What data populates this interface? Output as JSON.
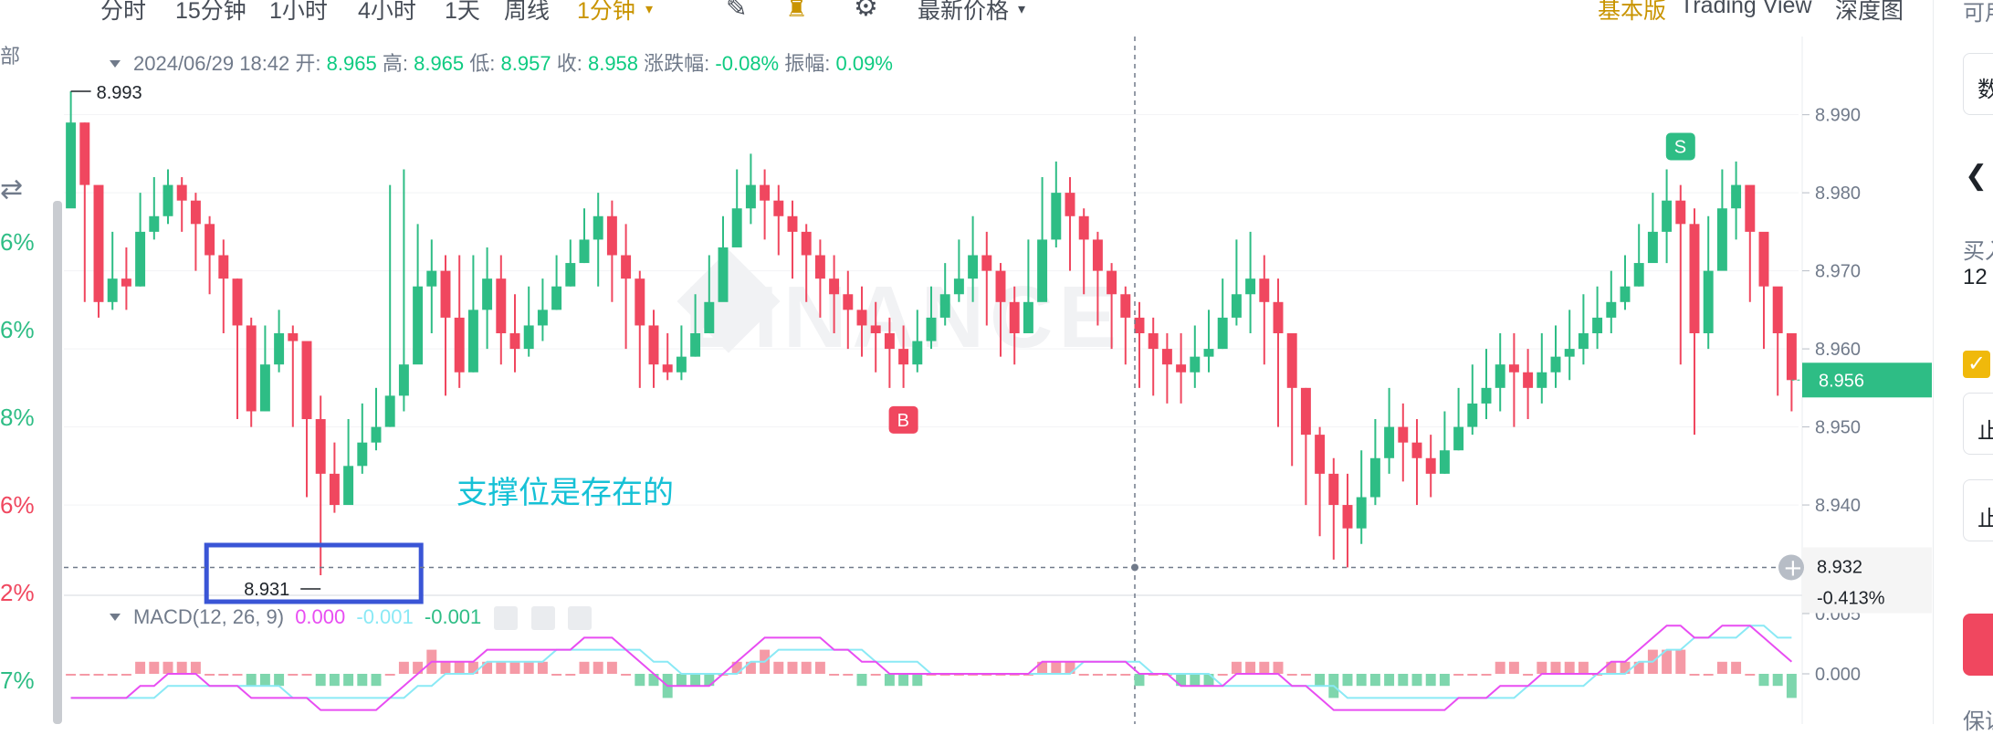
{
  "toolbar": {
    "intervals": [
      "分时",
      "15分钟",
      "1小时",
      "4小时",
      "1天",
      "周线"
    ],
    "active_interval": "1分钟",
    "price_type": "最新价格",
    "view_modes": [
      "基本版",
      "Trading View",
      "深度图"
    ],
    "active_view": "基本版"
  },
  "left_panel": {
    "dropdown_label": "部",
    "percentages": [
      "6%",
      "6%",
      "8%",
      "6%",
      "2%",
      "7%"
    ]
  },
  "right_panel": {
    "texts": [
      "可用",
      "数",
      "买入",
      "12",
      "止",
      "止",
      "保证"
    ]
  },
  "ohlc": {
    "datetime": "2024/06/29 18:42",
    "open_label": "开:",
    "open": "8.965",
    "high_label": "高:",
    "high": "8.965",
    "low_label": "低:",
    "low": "8.957",
    "close_label": "收:",
    "close": "8.958",
    "change_label": "涨跌幅:",
    "change": "-0.08%",
    "amp_label": "振幅:",
    "amp": "0.09%"
  },
  "macd": {
    "label": "MACD(12, 26, 9)",
    "dif": "0.000",
    "dea": "-0.001",
    "hist": "-0.001",
    "dif_color": "#e84df2",
    "dea_color": "#8ae9f5",
    "hist_color": "#2ebd85"
  },
  "annotation": {
    "text": "支撑位是存在的",
    "color": "#16c1d6",
    "box_color": "#3a55d6"
  },
  "watermark": "BINANCE",
  "colors": {
    "up": "#2ebd85",
    "down": "#f0475f",
    "last_price_bg": "#2ebd85"
  },
  "chart_data": {
    "type": "candlestick",
    "ylim": [
      8.931,
      8.993
    ],
    "y_ticks": [
      "8.990",
      "8.980",
      "8.970",
      "8.960",
      "8.950",
      "8.940"
    ],
    "macd_ticks": [
      "0.005",
      "0.000"
    ],
    "high_marker": "8.993",
    "low_marker": "8.931",
    "last_price": "8.956",
    "crosshair_price": "8.932",
    "crosshair_pct": "-0.413%",
    "buy_marker": "B",
    "sell_marker": "S",
    "closes": [
      8.989,
      8.981,
      8.966,
      8.969,
      8.968,
      8.975,
      8.977,
      8.981,
      8.979,
      8.976,
      8.972,
      8.969,
      8.963,
      8.952,
      8.958,
      8.962,
      8.961,
      8.951,
      8.944,
      8.94,
      8.945,
      8.948,
      8.95,
      8.954,
      8.958,
      8.968,
      8.97,
      8.964,
      8.957,
      8.965,
      8.969,
      8.962,
      8.96,
      8.963,
      8.965,
      8.968,
      8.971,
      8.974,
      8.977,
      8.972,
      8.969,
      8.963,
      8.958,
      8.957,
      8.959,
      8.962,
      8.966,
      8.973,
      8.978,
      8.981,
      8.979,
      8.977,
      8.975,
      8.972,
      8.969,
      8.967,
      8.965,
      8.963,
      8.962,
      8.96,
      8.958,
      8.961,
      8.964,
      8.967,
      8.969,
      8.972,
      8.97,
      8.966,
      8.962,
      8.966,
      8.974,
      8.98,
      8.977,
      8.974,
      8.97,
      8.967,
      8.964,
      8.962,
      8.96,
      8.958,
      8.957,
      8.959,
      8.96,
      8.964,
      8.967,
      8.969,
      8.966,
      8.962,
      8.955,
      8.949,
      8.944,
      8.94,
      8.937,
      8.941,
      8.946,
      8.95,
      8.948,
      8.946,
      8.944,
      8.947,
      8.95,
      8.953,
      8.955,
      8.958,
      8.957,
      8.955,
      8.957,
      8.959,
      8.96,
      8.962,
      8.964,
      8.966,
      8.968,
      8.971,
      8.975,
      8.979,
      8.976,
      8.962,
      8.97,
      8.978,
      8.981,
      8.975,
      8.968,
      8.962,
      8.956
    ],
    "highs": [
      8.993,
      8.989,
      8.977,
      8.975,
      8.973,
      8.98,
      8.982,
      8.983,
      8.982,
      8.98,
      8.977,
      8.974,
      8.969,
      8.964,
      8.963,
      8.965,
      8.963,
      8.96,
      8.954,
      8.948,
      8.951,
      8.953,
      8.955,
      8.981,
      8.983,
      8.976,
      8.974,
      8.972,
      8.972,
      8.972,
      8.973,
      8.972,
      8.967,
      8.968,
      8.969,
      8.972,
      8.974,
      8.978,
      8.98,
      8.979,
      8.976,
      8.97,
      8.965,
      8.962,
      8.963,
      8.967,
      8.972,
      8.977,
      8.983,
      8.985,
      8.983,
      8.981,
      8.979,
      8.976,
      8.974,
      8.972,
      8.97,
      8.968,
      8.966,
      8.964,
      8.963,
      8.965,
      8.968,
      8.971,
      8.974,
      8.977,
      8.975,
      8.971,
      8.968,
      8.974,
      8.982,
      8.984,
      8.982,
      8.978,
      8.975,
      8.971,
      8.968,
      8.966,
      8.964,
      8.962,
      8.962,
      8.963,
      8.965,
      8.969,
      8.974,
      8.975,
      8.972,
      8.969,
      8.962,
      8.955,
      8.95,
      8.946,
      8.944,
      8.947,
      8.951,
      8.955,
      8.953,
      8.951,
      8.949,
      8.952,
      8.955,
      8.958,
      8.96,
      8.962,
      8.962,
      8.96,
      8.962,
      8.963,
      8.965,
      8.967,
      8.968,
      8.97,
      8.972,
      8.976,
      8.98,
      8.983,
      8.981,
      8.978,
      8.977,
      8.983,
      8.984,
      8.98,
      8.973,
      8.966,
      8.96
    ],
    "lows": [
      8.98,
      8.966,
      8.964,
      8.965,
      8.965,
      8.968,
      8.974,
      8.976,
      8.975,
      8.97,
      8.967,
      8.962,
      8.951,
      8.95,
      8.952,
      8.957,
      8.95,
      8.941,
      8.931,
      8.939,
      8.941,
      8.944,
      8.947,
      8.95,
      8.952,
      8.962,
      8.962,
      8.954,
      8.955,
      8.957,
      8.96,
      8.958,
      8.957,
      8.959,
      8.961,
      8.965,
      8.968,
      8.971,
      8.968,
      8.966,
      8.96,
      8.955,
      8.955,
      8.956,
      8.956,
      8.959,
      8.963,
      8.969,
      8.974,
      8.976,
      8.974,
      8.972,
      8.969,
      8.966,
      8.964,
      8.962,
      8.96,
      8.959,
      8.957,
      8.955,
      8.955,
      8.957,
      8.96,
      8.963,
      8.966,
      8.966,
      8.963,
      8.959,
      8.958,
      8.962,
      8.97,
      8.973,
      8.97,
      8.967,
      8.963,
      8.96,
      8.958,
      8.955,
      8.954,
      8.953,
      8.953,
      8.955,
      8.957,
      8.96,
      8.963,
      8.962,
      8.958,
      8.95,
      8.945,
      8.94,
      8.936,
      8.933,
      8.932,
      8.935,
      8.94,
      8.944,
      8.943,
      8.94,
      8.941,
      8.944,
      8.947,
      8.949,
      8.951,
      8.952,
      8.95,
      8.951,
      8.953,
      8.955,
      8.956,
      8.958,
      8.96,
      8.962,
      8.965,
      8.968,
      8.972,
      8.971,
      8.958,
      8.949,
      8.96,
      8.972,
      8.974,
      8.966,
      8.96,
      8.954,
      8.952
    ],
    "macd_dif": [
      -0.002,
      -0.002,
      -0.002,
      -0.002,
      -0.002,
      -0.001,
      -0.001,
      0.0,
      0.0,
      0.0,
      -0.001,
      -0.001,
      -0.001,
      -0.002,
      -0.002,
      -0.002,
      -0.002,
      -0.002,
      -0.003,
      -0.003,
      -0.003,
      -0.003,
      -0.003,
      -0.002,
      -0.001,
      0.0,
      0.001,
      0.001,
      0.001,
      0.001,
      0.002,
      0.002,
      0.002,
      0.002,
      0.002,
      0.002,
      0.002,
      0.003,
      0.003,
      0.003,
      0.002,
      0.001,
      0.0,
      -0.001,
      -0.001,
      -0.001,
      -0.001,
      0.0,
      0.001,
      0.002,
      0.003,
      0.003,
      0.003,
      0.003,
      0.003,
      0.002,
      0.002,
      0.001,
      0.001,
      0.0,
      0.0,
      0.0,
      0.0,
      0.0,
      0.0,
      0.0,
      0.0,
      0.0,
      0.0,
      0.0,
      0.001,
      0.001,
      0.001,
      0.001,
      0.001,
      0.001,
      0.001,
      0.0,
      0.0,
      0.0,
      -0.001,
      -0.001,
      -0.001,
      -0.001,
      0.0,
      0.0,
      0.0,
      0.0,
      -0.001,
      -0.001,
      -0.002,
      -0.003,
      -0.003,
      -0.003,
      -0.003,
      -0.003,
      -0.003,
      -0.003,
      -0.003,
      -0.003,
      -0.002,
      -0.002,
      -0.002,
      -0.001,
      -0.001,
      -0.001,
      0.0,
      0.0,
      0.0,
      0.0,
      0.0,
      0.001,
      0.001,
      0.002,
      0.003,
      0.004,
      0.004,
      0.003,
      0.003,
      0.004,
      0.004,
      0.004,
      0.003,
      0.002,
      0.001
    ],
    "macd_dea": [
      -0.002,
      -0.002,
      -0.002,
      -0.002,
      -0.002,
      -0.002,
      -0.002,
      -0.001,
      -0.001,
      -0.001,
      -0.001,
      -0.001,
      -0.001,
      -0.001,
      -0.001,
      -0.001,
      -0.002,
      -0.002,
      -0.002,
      -0.002,
      -0.002,
      -0.002,
      -0.002,
      -0.002,
      -0.002,
      -0.001,
      -0.001,
      0.0,
      0.0,
      0.0,
      0.001,
      0.001,
      0.001,
      0.001,
      0.001,
      0.002,
      0.002,
      0.002,
      0.002,
      0.002,
      0.002,
      0.002,
      0.001,
      0.001,
      0.0,
      0.0,
      0.0,
      0.0,
      0.0,
      0.001,
      0.001,
      0.002,
      0.002,
      0.002,
      0.002,
      0.002,
      0.002,
      0.002,
      0.001,
      0.001,
      0.001,
      0.001,
      0.0,
      0.0,
      0.0,
      0.0,
      0.0,
      0.0,
      0.0,
      0.0,
      0.0,
      0.0,
      0.0,
      0.001,
      0.001,
      0.001,
      0.001,
      0.001,
      0.0,
      0.0,
      0.0,
      0.0,
      0.0,
      -0.001,
      -0.001,
      -0.001,
      -0.001,
      -0.001,
      -0.001,
      -0.001,
      -0.001,
      -0.001,
      -0.002,
      -0.002,
      -0.002,
      -0.002,
      -0.002,
      -0.002,
      -0.002,
      -0.002,
      -0.002,
      -0.002,
      -0.002,
      -0.002,
      -0.002,
      -0.001,
      -0.001,
      -0.001,
      -0.001,
      -0.001,
      0.0,
      0.0,
      0.0,
      0.001,
      0.001,
      0.002,
      0.002,
      0.003,
      0.003,
      0.003,
      0.003,
      0.004,
      0.004,
      0.003,
      0.003
    ]
  }
}
